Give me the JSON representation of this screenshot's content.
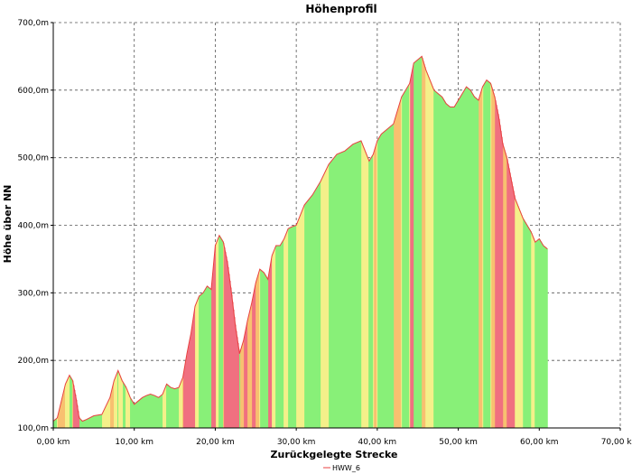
{
  "chart_data": {
    "type": "area",
    "title": "Höhenprofil",
    "xlabel": "Zurückgelegte Strecke",
    "ylabel": "Höhe über NN",
    "xlim": [
      0,
      70
    ],
    "ylim": [
      100,
      700
    ],
    "x_ticks": [
      0,
      10,
      20,
      30,
      40,
      50,
      60,
      70
    ],
    "x_tick_labels": [
      "0,00 km",
      "10,00 km",
      "20,00 km",
      "30,00 km",
      "40,00 km",
      "50,00 km",
      "60,00 km",
      "70,00 km"
    ],
    "y_ticks": [
      100,
      200,
      300,
      400,
      500,
      600,
      700
    ],
    "y_tick_labels": [
      "100,0m",
      "200,0m",
      "300,0m",
      "400,0m",
      "500,0m",
      "600,0m",
      "700,0m"
    ],
    "grid": true,
    "legend_position": "bottom-center",
    "fill_colors": [
      "#88f078",
      "#f4f08a",
      "#f8c070",
      "#f07080"
    ],
    "line_color": "#e84040",
    "series": [
      {
        "name": "HWW_6",
        "x": [
          0.0,
          0.5,
          1.0,
          1.5,
          2.0,
          2.4,
          2.8,
          3.2,
          3.6,
          4.0,
          5.0,
          6.0,
          7.0,
          7.5,
          8.0,
          8.5,
          9.0,
          9.5,
          10.0,
          10.5,
          11.0,
          11.5,
          12.0,
          12.5,
          13.0,
          13.5,
          14.0,
          14.5,
          15.0,
          15.5,
          16.0,
          16.5,
          17.0,
          17.5,
          18.0,
          18.5,
          19.0,
          19.5,
          20.0,
          20.5,
          21.0,
          21.5,
          22.0,
          22.5,
          23.0,
          23.5,
          24.0,
          24.5,
          25.0,
          25.5,
          26.0,
          26.5,
          27.0,
          27.5,
          28.0,
          28.5,
          29.0,
          29.5,
          30.0,
          31.0,
          32.0,
          33.0,
          34.0,
          35.0,
          36.0,
          37.0,
          38.0,
          38.5,
          39.0,
          39.5,
          40.0,
          40.5,
          41.0,
          41.5,
          42.0,
          42.5,
          43.0,
          43.5,
          44.0,
          44.5,
          45.0,
          45.5,
          46.0,
          46.5,
          47.0,
          47.5,
          48.0,
          48.5,
          49.0,
          49.5,
          50.0,
          50.5,
          51.0,
          51.5,
          52.0,
          52.5,
          53.0,
          53.5,
          54.0,
          54.5,
          55.0,
          55.5,
          56.0,
          57.0,
          58.0,
          59.0,
          59.5,
          60.0,
          60.5,
          61.0
        ],
        "y": [
          110,
          115,
          140,
          165,
          178,
          170,
          145,
          115,
          110,
          112,
          118,
          120,
          145,
          170,
          185,
          170,
          160,
          145,
          135,
          140,
          145,
          148,
          150,
          148,
          145,
          150,
          165,
          160,
          158,
          160,
          175,
          210,
          240,
          280,
          295,
          300,
          310,
          305,
          370,
          385,
          375,
          345,
          300,
          250,
          210,
          230,
          260,
          285,
          315,
          335,
          330,
          320,
          355,
          370,
          370,
          380,
          395,
          398,
          400,
          430,
          445,
          465,
          490,
          505,
          510,
          520,
          525,
          510,
          495,
          505,
          525,
          535,
          540,
          545,
          550,
          570,
          590,
          600,
          610,
          640,
          645,
          650,
          630,
          615,
          600,
          595,
          590,
          580,
          575,
          575,
          585,
          595,
          605,
          600,
          590,
          585,
          605,
          615,
          610,
          590,
          560,
          520,
          500,
          440,
          410,
          390,
          375,
          380,
          370,
          365
        ]
      }
    ]
  }
}
